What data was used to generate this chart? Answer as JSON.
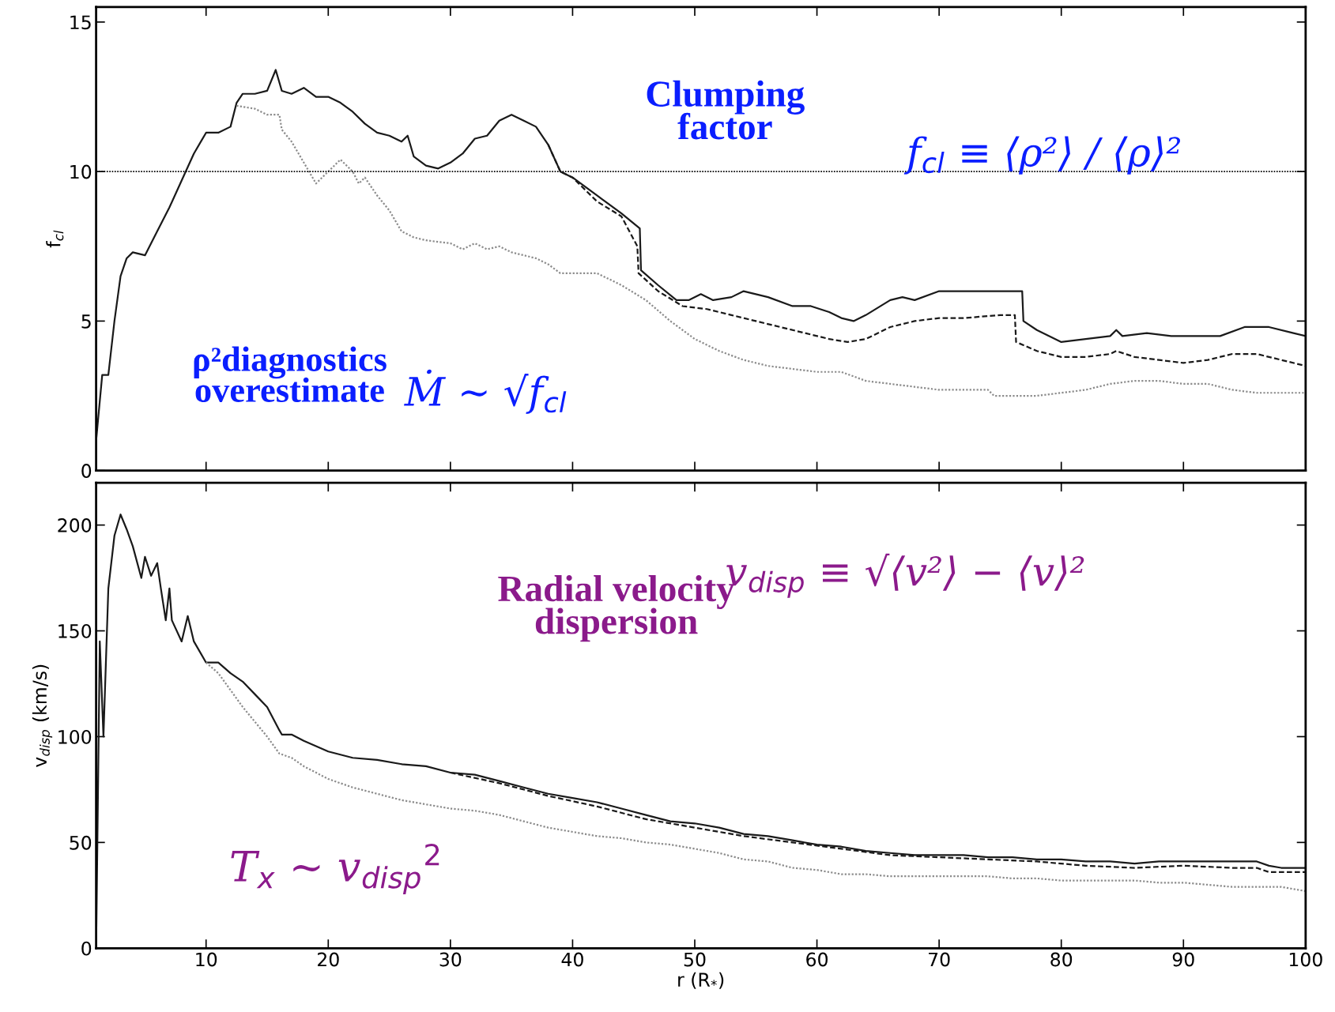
{
  "chart_data": [
    {
      "type": "line",
      "ylabel": "f$_{cl}$",
      "xlim": [
        1,
        100
      ],
      "xticks": [
        10,
        20,
        30,
        40,
        50,
        60,
        70,
        80,
        90,
        100
      ],
      "ylim": [
        0,
        15.5
      ],
      "yticks": [
        0,
        5,
        10,
        15
      ],
      "tick_labels": "y",
      "grid": false,
      "legend": false,
      "ref_lines": [
        {
          "axis": "y",
          "value": 10,
          "color": "#000000",
          "line_style": "dotted"
        }
      ],
      "annotations": [
        "Clumping\nfactor",
        "f$_{cl}$ ≡ ⟨ρ²⟩ / ⟨ρ⟩²",
        "ρ²diagnostics\noverestimate",
        "Ṁ ~ √f$_{cl}$"
      ],
      "series": [
        {
          "color": "#1a1a1a",
          "line_style": "solid",
          "x": [
            1,
            1.5,
            2,
            2.5,
            3,
            3.5,
            4,
            5,
            6,
            7,
            8,
            9,
            10,
            11,
            12,
            12.5,
            13,
            14,
            15,
            15.7,
            16.2,
            17,
            18,
            19,
            20,
            21,
            22,
            23,
            24,
            25,
            26,
            26.5,
            27,
            28,
            29,
            30,
            31,
            32,
            33,
            34,
            35,
            36,
            37,
            38,
            39,
            40,
            42,
            44,
            45.5,
            45.6,
            47,
            48.5,
            49.5,
            50.5,
            51.5,
            53,
            54,
            56,
            58,
            59.5,
            61,
            62,
            63,
            64,
            66,
            67,
            68,
            70,
            72,
            74,
            76.8,
            76.9,
            78,
            80,
            82,
            84,
            84.5,
            85,
            87,
            89,
            91,
            93,
            95,
            97,
            99,
            100
          ],
          "values": [
            1.0,
            3.2,
            3.2,
            5,
            6.5,
            7.1,
            7.3,
            7.2,
            8.0,
            8.8,
            9.7,
            10.6,
            11.3,
            11.3,
            11.5,
            12.3,
            12.6,
            12.6,
            12.7,
            13.4,
            12.7,
            12.6,
            12.8,
            12.5,
            12.5,
            12.3,
            12.0,
            11.6,
            11.3,
            11.2,
            11.0,
            11.2,
            10.5,
            10.2,
            10.1,
            10.3,
            10.6,
            11.1,
            11.2,
            11.7,
            11.9,
            11.7,
            11.5,
            10.9,
            10.0,
            9.8,
            9.2,
            8.6,
            8.1,
            6.7,
            6.2,
            5.7,
            5.7,
            5.9,
            5.7,
            5.8,
            6.0,
            5.8,
            5.5,
            5.5,
            5.3,
            5.1,
            5.0,
            5.2,
            5.7,
            5.8,
            5.7,
            6.0,
            6.0,
            6.0,
            6.0,
            5.0,
            4.7,
            4.3,
            4.4,
            4.5,
            4.7,
            4.5,
            4.6,
            4.5,
            4.5,
            4.5,
            4.8,
            4.8,
            4.6,
            4.5
          ]
        },
        {
          "color": "#1a1a1a",
          "line_style": "dashed",
          "x": [
            38,
            39,
            40,
            42,
            44,
            45.3,
            45.4,
            47,
            49,
            51,
            53,
            55,
            57,
            59,
            61,
            62.5,
            64,
            66,
            68,
            70,
            72,
            75,
            76.2,
            76.3,
            78,
            80,
            82,
            84,
            84.5,
            86,
            88,
            90,
            92,
            94,
            96,
            98,
            100
          ],
          "values": [
            10.9,
            10.0,
            9.8,
            9.0,
            8.5,
            7.5,
            6.6,
            6.0,
            5.5,
            5.4,
            5.2,
            5.0,
            4.8,
            4.6,
            4.4,
            4.3,
            4.4,
            4.8,
            5.0,
            5.1,
            5.1,
            5.2,
            5.2,
            4.3,
            4.0,
            3.8,
            3.8,
            3.9,
            4.0,
            3.8,
            3.7,
            3.6,
            3.7,
            3.9,
            3.9,
            3.7,
            3.5
          ]
        },
        {
          "color": "#8c8c8c",
          "line_style": "dotted",
          "x": [
            12.5,
            14,
            15,
            16,
            16.2,
            17,
            18,
            19,
            20,
            21,
            22,
            22.5,
            23,
            24,
            25,
            26,
            27,
            28,
            30,
            31,
            32,
            33,
            34,
            35,
            36,
            37,
            38,
            39,
            42,
            44,
            46,
            48,
            50,
            52,
            54,
            56,
            58,
            60,
            62,
            64,
            66,
            68,
            70,
            72,
            74,
            74.5,
            76,
            78,
            80,
            82,
            84,
            86,
            88,
            90,
            92,
            94,
            96,
            98,
            100
          ],
          "values": [
            12.2,
            12.1,
            11.9,
            11.9,
            11.4,
            11.0,
            10.3,
            9.6,
            10.0,
            10.4,
            10.0,
            9.6,
            9.8,
            9.2,
            8.7,
            8.0,
            7.8,
            7.7,
            7.6,
            7.4,
            7.6,
            7.4,
            7.5,
            7.3,
            7.2,
            7.1,
            6.9,
            6.6,
            6.6,
            6.2,
            5.7,
            5.0,
            4.4,
            4.0,
            3.7,
            3.5,
            3.4,
            3.3,
            3.3,
            3.0,
            2.9,
            2.8,
            2.7,
            2.7,
            2.7,
            2.5,
            2.5,
            2.5,
            2.6,
            2.7,
            2.9,
            3.0,
            3.0,
            2.9,
            2.9,
            2.7,
            2.6,
            2.6,
            2.6
          ]
        }
      ]
    },
    {
      "type": "line",
      "xlabel": "r (R$_{*}$)",
      "ylabel": "v$_{disp}$ (km/s)",
      "xlim": [
        1,
        100
      ],
      "xticks": [
        10,
        20,
        30,
        40,
        50,
        60,
        70,
        80,
        90,
        100
      ],
      "ylim": [
        0,
        220
      ],
      "yticks": [
        0,
        50,
        100,
        150,
        200
      ],
      "grid": false,
      "legend": false,
      "annotations": [
        "Radial velocity\ndispersion",
        "v$_{disp}$ ≡ √⟨v²⟩ − ⟨v⟩²",
        "T$_{x}$ ~ v$_{disp}$$^{2}$"
      ],
      "series": [
        {
          "color": "#1a1a1a",
          "line_style": "solid",
          "x": [
            1,
            1.3,
            1.6,
            2,
            2.5,
            3,
            3.5,
            4,
            4.7,
            5,
            5.5,
            6,
            6.3,
            6.7,
            7,
            7.2,
            8,
            8.5,
            9,
            10,
            11,
            12,
            13,
            14,
            15,
            16,
            16.2,
            17,
            18,
            20,
            22,
            24,
            26,
            28,
            30,
            32,
            34,
            36,
            38,
            40,
            42,
            44,
            46,
            48,
            50,
            52,
            54,
            56,
            58,
            60,
            62,
            64,
            66,
            68,
            70,
            72,
            74,
            76,
            78,
            80,
            82,
            84,
            86,
            88,
            90,
            92,
            94,
            96,
            97,
            98,
            100
          ],
          "values": [
            0,
            145,
            100,
            170,
            195,
            205,
            198,
            190,
            175,
            185,
            176,
            182,
            170,
            155,
            170,
            155,
            145,
            157,
            145,
            135,
            135,
            130,
            126,
            120,
            114,
            103,
            101,
            101,
            98,
            93,
            90,
            89,
            87,
            86,
            83,
            82,
            79,
            76,
            73,
            71,
            69,
            66,
            63,
            60,
            59,
            57,
            54,
            53,
            51,
            49,
            48,
            46,
            45,
            44,
            44,
            44,
            43,
            43,
            42,
            42,
            41,
            41,
            40,
            41,
            41,
            41,
            41,
            41,
            39,
            38,
            38
          ]
        },
        {
          "color": "#1a1a1a",
          "line_style": "dashed",
          "x": [
            30,
            34,
            38,
            42,
            46,
            50,
            54,
            58,
            62,
            66,
            70,
            74,
            78,
            82,
            86,
            90,
            94,
            96,
            97,
            100
          ],
          "values": [
            83,
            78,
            72,
            67,
            61,
            57,
            53,
            50,
            47,
            44,
            43,
            42,
            41,
            39,
            38,
            39,
            38,
            38,
            36,
            36
          ]
        },
        {
          "color": "#8c8c8c",
          "line_style": "dotted",
          "x": [
            10,
            11,
            12,
            13,
            14,
            15,
            16,
            17,
            18,
            20,
            22,
            24,
            26,
            28,
            30,
            32,
            34,
            36,
            38,
            40,
            42,
            44,
            46,
            48,
            50,
            52,
            54,
            56,
            58,
            60,
            62,
            64,
            66,
            68,
            70,
            72,
            74,
            76,
            78,
            80,
            82,
            84,
            86,
            88,
            90,
            92,
            94,
            96,
            98,
            100
          ],
          "values": [
            135,
            130,
            122,
            114,
            107,
            100,
            92,
            90,
            86,
            80,
            76,
            73,
            70,
            68,
            66,
            65,
            63,
            60,
            57,
            55,
            53,
            52,
            50,
            49,
            47,
            45,
            42,
            41,
            38,
            37,
            35,
            35,
            34,
            34,
            34,
            34,
            34,
            33,
            33,
            32,
            32,
            32,
            32,
            31,
            31,
            30,
            29,
            29,
            29,
            27
          ]
        }
      ]
    }
  ]
}
